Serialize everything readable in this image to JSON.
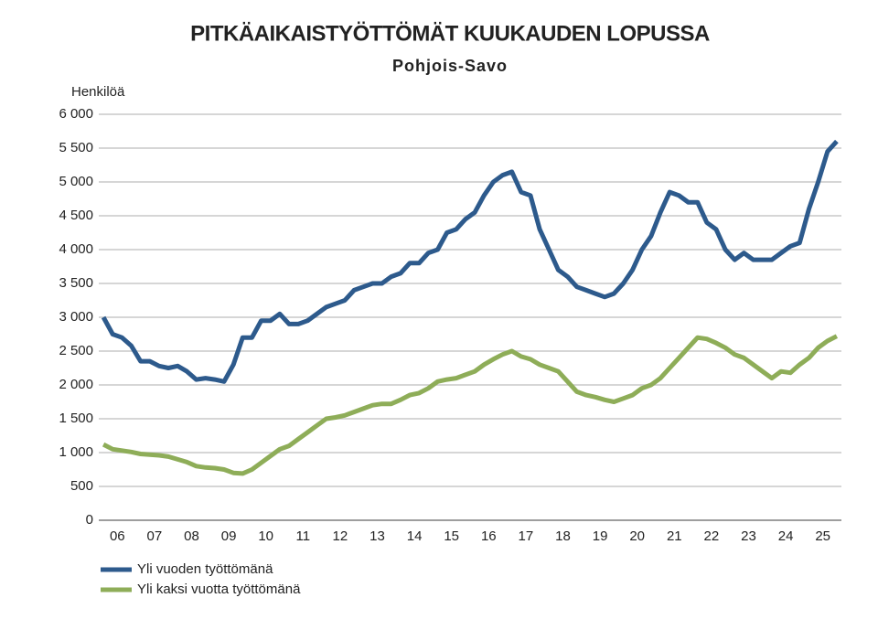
{
  "chart_data": {
    "type": "line",
    "title": "PITKÄAIKAISTYÖTTÖMÄT KUUKAUDEN LOPUSSA",
    "subtitle": "Pohjois-Savo",
    "y_label": "Henkilöä",
    "categories": [
      null,
      "06",
      null,
      null,
      null,
      "07",
      null,
      null,
      null,
      "08",
      null,
      null,
      null,
      "09",
      null,
      null,
      null,
      "10",
      null,
      null,
      null,
      "11",
      null,
      null,
      null,
      "12",
      null,
      null,
      null,
      "13",
      null,
      null,
      null,
      "14",
      null,
      null,
      null,
      "15",
      null,
      null,
      null,
      "16",
      null,
      null,
      null,
      "17",
      null,
      null,
      null,
      "18",
      null,
      null,
      null,
      "19",
      null,
      null,
      null,
      "20",
      null,
      null,
      null,
      "21",
      null,
      null,
      null,
      "22",
      null,
      null,
      null,
      "23",
      null,
      null,
      null,
      "24",
      null,
      null,
      null,
      "25",
      null,
      null
    ],
    "series": [
      {
        "name": "Yli vuoden työttömänä",
        "color": "#2d5a8c",
        "values": [
          3000,
          2750,
          2700,
          2580,
          2350,
          2350,
          2280,
          2250,
          2280,
          2200,
          2080,
          2100,
          2080,
          2050,
          2300,
          2700,
          2700,
          2950,
          2950,
          3050,
          2900,
          2900,
          2950,
          3050,
          3150,
          3200,
          3250,
          3400,
          3450,
          3500,
          3500,
          3600,
          3650,
          3800,
          3800,
          3950,
          4000,
          4250,
          4300,
          4450,
          4550,
          4800,
          5000,
          5100,
          5150,
          4850,
          4800,
          4300,
          4000,
          3700,
          3600,
          3450,
          3400,
          3350,
          3300,
          3350,
          3500,
          3700,
          4000,
          4200,
          4550,
          4850,
          4800,
          4700,
          4700,
          4400,
          4300,
          4000,
          3850,
          3950,
          3850,
          3850,
          3850,
          3950,
          4050,
          4100,
          4600,
          5000,
          5450,
          5600
        ]
      },
      {
        "name": "Yli kaksi vuotta työttömänä",
        "color": "#8ead58",
        "values": [
          1120,
          1050,
          1030,
          1010,
          980,
          970,
          960,
          940,
          900,
          860,
          800,
          780,
          770,
          750,
          700,
          690,
          750,
          850,
          950,
          1050,
          1100,
          1200,
          1300,
          1400,
          1500,
          1520,
          1550,
          1600,
          1650,
          1700,
          1720,
          1720,
          1780,
          1850,
          1880,
          1950,
          2050,
          2080,
          2100,
          2150,
          2200,
          2300,
          2380,
          2450,
          2500,
          2420,
          2380,
          2300,
          2250,
          2200,
          2050,
          1900,
          1850,
          1820,
          1780,
          1750,
          1800,
          1850,
          1950,
          2000,
          2100,
          2250,
          2400,
          2550,
          2700,
          2680,
          2620,
          2550,
          2450,
          2400,
          2300,
          2200,
          2100,
          2200,
          2180,
          2300,
          2400,
          2550,
          2650,
          2720
        ]
      }
    ],
    "ylim": [
      0,
      6000
    ],
    "yticks": [
      0,
      500,
      {
        "value": 1000,
        "label": "1 000"
      },
      {
        "value": 1500,
        "label": "1 500"
      },
      {
        "value": 2000,
        "label": "2 000"
      },
      {
        "value": 2500,
        "label": "2 500"
      },
      {
        "value": 3000,
        "label": "3 000"
      },
      {
        "value": 3500,
        "label": "3 500"
      },
      {
        "value": 4000,
        "label": "4 000"
      },
      {
        "value": 4500,
        "label": "4 500"
      },
      {
        "value": 5000,
        "label": "5 000"
      },
      {
        "value": 5500,
        "label": "5 500"
      },
      {
        "value": 6000,
        "label": "6 000"
      }
    ],
    "grid": true
  }
}
